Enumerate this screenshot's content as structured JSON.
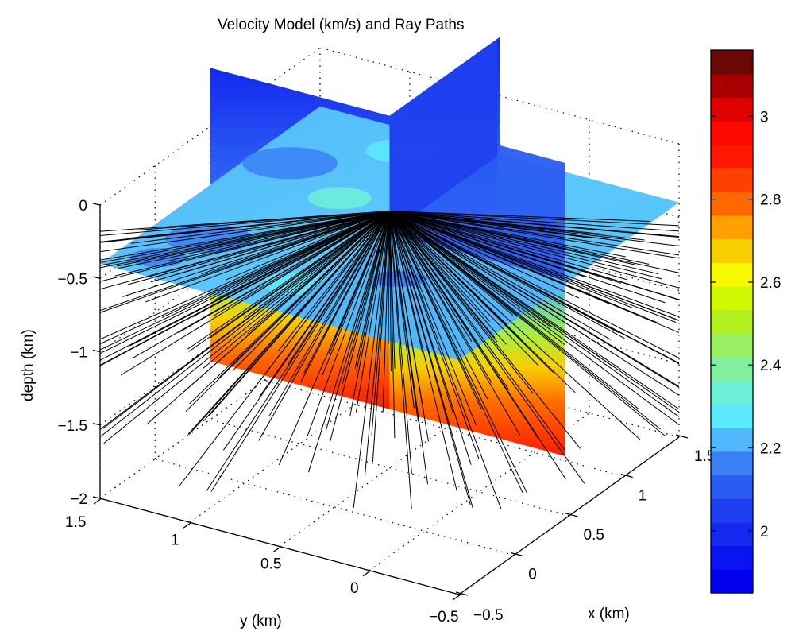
{
  "chart_data": {
    "type": "surface3d-slices",
    "title": "Velocity Model (km/s) and Ray Paths",
    "xlabel": "x (km)",
    "ylabel": "y (km)",
    "zlabel": "depth (km)",
    "xlim": [
      -0.5,
      1.5
    ],
    "ylim": [
      -0.5,
      1.5
    ],
    "zlim": [
      -2,
      0
    ],
    "x_ticks": [
      "-0.5",
      "0",
      "0.5",
      "1",
      "1.5"
    ],
    "x_tick_values": [
      -0.5,
      0,
      0.5,
      1,
      1.5
    ],
    "y_ticks": [
      "1.5",
      "1",
      "0.5",
      "0",
      "-0.5"
    ],
    "y_tick_values": [
      1.5,
      1,
      0.5,
      0,
      -0.5
    ],
    "z_ticks": [
      "0",
      "-0.5",
      "-1",
      "-1.5",
      "-2"
    ],
    "z_tick_values": [
      0,
      -0.5,
      -1,
      -1.5,
      -2
    ],
    "grid": true,
    "slices": [
      {
        "name": "horizontal slice",
        "depth": -0.4,
        "velocity_range": [
          1.95,
          2.3
        ]
      },
      {
        "name": "vertical slice x",
        "x": 0.5,
        "velocity_range": [
          1.95,
          3.0
        ]
      },
      {
        "name": "vertical slice y",
        "y": 0.5,
        "velocity_range": [
          1.95,
          3.0
        ]
      }
    ],
    "ray_source": {
      "x": 0.5,
      "y": 0.5,
      "depth": -0.25
    },
    "ray_count_approx": 200,
    "colorbar": {
      "label_ticks": [
        "2",
        "2.2",
        "2.4",
        "2.6",
        "2.8",
        "3"
      ],
      "tick_values": [
        2,
        2.2,
        2.4,
        2.6,
        2.8,
        3
      ],
      "range": [
        1.85,
        3.16
      ],
      "placement": "right",
      "levels": [
        "#0000f0",
        "#0a14f0",
        "#1428f0",
        "#1e40f0",
        "#2a5cf2",
        "#3a80f5",
        "#50b8fa",
        "#5ceaff",
        "#6ef0d8",
        "#80f0a0",
        "#98f060",
        "#b4f020",
        "#d0f800",
        "#f8f800",
        "#f8d000",
        "#ffa000",
        "#ff6800",
        "#ff4000",
        "#ff1800",
        "#ff0800",
        "#e00000",
        "#a80000",
        "#6a0808"
      ]
    },
    "colors": {
      "axis": "#000000",
      "grid": "#000000",
      "ray": "#000000"
    }
  }
}
